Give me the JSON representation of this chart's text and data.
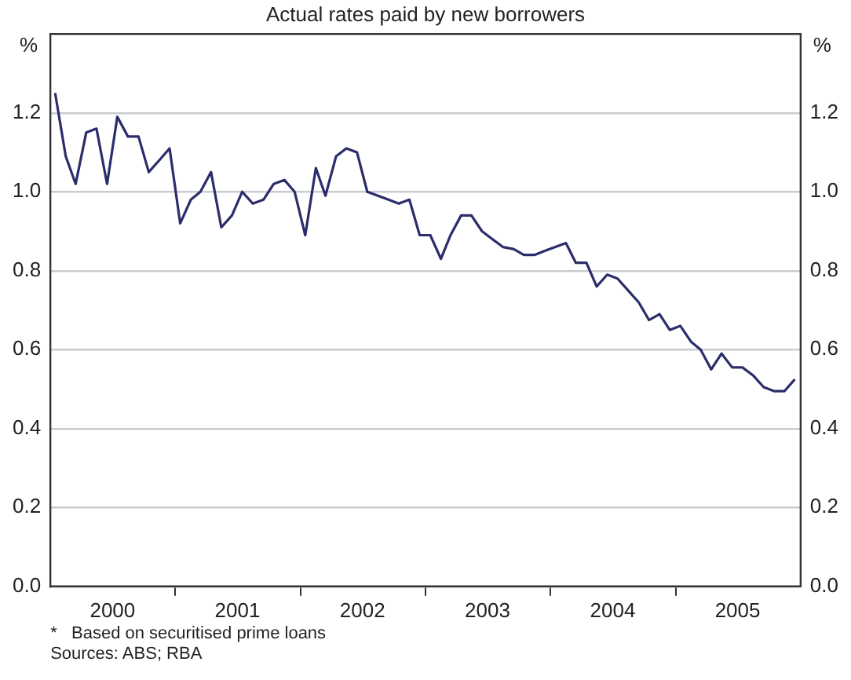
{
  "chart_data": {
    "type": "line",
    "title": "Actual rates paid by new borrowers",
    "ylabel": "%",
    "y2label": "%",
    "annotations": [
      "*   Based on securitised prime loans",
      "Sources: ABS; RBA"
    ],
    "x": [
      "2000-01-15",
      "2000-02-15",
      "2000-03-15",
      "2000-04-15",
      "2000-05-15",
      "2000-06-15",
      "2000-07-15",
      "2000-08-15",
      "2000-09-15",
      "2000-10-15",
      "2000-11-15",
      "2000-12-15",
      "2001-01-15",
      "2001-02-15",
      "2001-03-15",
      "2001-04-15",
      "2001-05-15",
      "2001-06-15",
      "2001-07-15",
      "2001-08-15",
      "2001-09-15",
      "2001-10-15",
      "2001-11-15",
      "2001-12-15",
      "2002-01-15",
      "2002-02-15",
      "2002-03-15",
      "2002-04-15",
      "2002-05-15",
      "2002-06-15",
      "2002-07-15",
      "2002-08-15",
      "2002-09-15",
      "2002-10-15",
      "2002-11-15",
      "2002-12-15",
      "2003-01-15",
      "2003-02-15",
      "2003-03-15",
      "2003-04-15",
      "2003-05-15",
      "2003-06-15",
      "2003-07-15",
      "2003-08-15",
      "2003-09-15",
      "2003-10-15",
      "2003-11-15",
      "2003-12-15",
      "2004-01-15",
      "2004-02-15",
      "2004-03-15",
      "2004-04-15",
      "2004-05-15",
      "2004-06-15",
      "2004-07-15",
      "2004-08-15",
      "2004-09-15",
      "2004-10-15",
      "2004-11-15",
      "2004-12-15",
      "2005-01-15",
      "2005-02-15",
      "2005-03-15",
      "2005-04-15",
      "2005-05-15",
      "2005-06-15",
      "2005-07-15",
      "2005-08-15",
      "2005-09-15",
      "2005-10-15",
      "2005-11-15",
      "2005-12-15"
    ],
    "series": [
      {
        "color": "#2b2d6b",
        "values": [
          1.25,
          1.09,
          1.02,
          1.15,
          1.16,
          1.02,
          1.19,
          1.14,
          1.14,
          1.05,
          1.08,
          1.11,
          0.92,
          0.98,
          1.0,
          1.05,
          0.91,
          0.94,
          1.0,
          0.97,
          0.98,
          1.02,
          1.03,
          1.0,
          0.89,
          1.06,
          0.99,
          1.09,
          1.11,
          1.1,
          1.0,
          0.99,
          0.98,
          0.97,
          0.98,
          0.89,
          0.89,
          0.83,
          0.89,
          0.94,
          0.94,
          0.9,
          0.88,
          0.86,
          0.855,
          0.84,
          0.84,
          0.85,
          0.86,
          0.87,
          0.82,
          0.82,
          0.76,
          0.79,
          0.78,
          0.75,
          0.72,
          0.675,
          0.69,
          0.65,
          0.66,
          0.62,
          0.6,
          0.55,
          0.59,
          0.555,
          0.555,
          0.535,
          0.505,
          0.495,
          0.495,
          0.525
        ]
      }
    ],
    "xlim": [
      "2000-01-01",
      "2006-01-01"
    ],
    "xticks": [
      {
        "value": "2000-07-01",
        "label": "2000"
      },
      {
        "value": "2001-01-01",
        "label": null
      },
      {
        "value": "2001-07-01",
        "label": "2001"
      },
      {
        "value": "2002-01-01",
        "label": null
      },
      {
        "value": "2002-07-01",
        "label": "2002"
      },
      {
        "value": "2003-01-01",
        "label": null
      },
      {
        "value": "2003-07-01",
        "label": "2003"
      },
      {
        "value": "2004-01-01",
        "label": null
      },
      {
        "value": "2004-07-01",
        "label": "2004"
      },
      {
        "value": "2005-01-01",
        "label": null
      },
      {
        "value": "2005-07-01",
        "label": "2005"
      }
    ],
    "ylim": [
      0,
      1.4
    ],
    "yticks": [
      {
        "value": 0,
        "label": "0.0"
      },
      {
        "value": 0.2,
        "label": "0.2"
      },
      {
        "value": 0.4,
        "label": "0.4"
      },
      {
        "value": 0.6,
        "label": "0.6"
      },
      {
        "value": 0.8,
        "label": "0.8"
      },
      {
        "value": 1,
        "label": "1.0"
      },
      {
        "value": 1.2,
        "label": "1.2"
      }
    ],
    "y2lim": [
      0,
      1.4
    ],
    "y2ticks": [
      {
        "value": 0,
        "label": "0.0"
      },
      {
        "value": 0.2,
        "label": "0.2"
      },
      {
        "value": 0.4,
        "label": "0.4"
      },
      {
        "value": 0.6,
        "label": "0.6"
      },
      {
        "value": 0.8,
        "label": "0.8"
      },
      {
        "value": 1,
        "label": "1.0"
      },
      {
        "value": 1.2,
        "label": "1.2"
      }
    ],
    "grid": "y",
    "marker": "none",
    "line_style": "solid"
  }
}
